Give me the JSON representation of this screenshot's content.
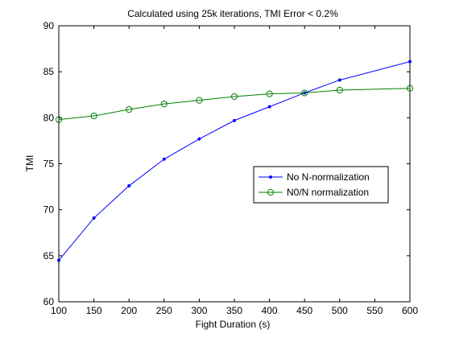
{
  "chart_data": {
    "type": "line",
    "title": "Calculated using 25k iterations, TMI Error < 0.2%",
    "xlabel": "Fight Duration (s)",
    "ylabel": "TMI",
    "xlim": [
      100,
      600
    ],
    "ylim": [
      60,
      90
    ],
    "x_ticks": [
      100,
      150,
      200,
      250,
      300,
      350,
      400,
      450,
      500,
      550,
      600
    ],
    "y_ticks": [
      60,
      65,
      70,
      75,
      80,
      85,
      90
    ],
    "grid": false,
    "legend_position": "right-center",
    "x": [
      100,
      150,
      200,
      250,
      300,
      350,
      400,
      450,
      500,
      600
    ],
    "series": [
      {
        "name": "No N-normalization",
        "color": "#0000ff",
        "marker": "point",
        "values": [
          64.5,
          69.1,
          72.6,
          75.5,
          77.7,
          79.7,
          81.2,
          82.7,
          84.1,
          86.1
        ]
      },
      {
        "name": "N0/N normalization",
        "color": "#008000",
        "marker": "circle",
        "values": [
          79.8,
          80.2,
          80.9,
          81.5,
          81.9,
          82.3,
          82.6,
          82.7,
          83.0,
          83.2
        ]
      }
    ]
  }
}
